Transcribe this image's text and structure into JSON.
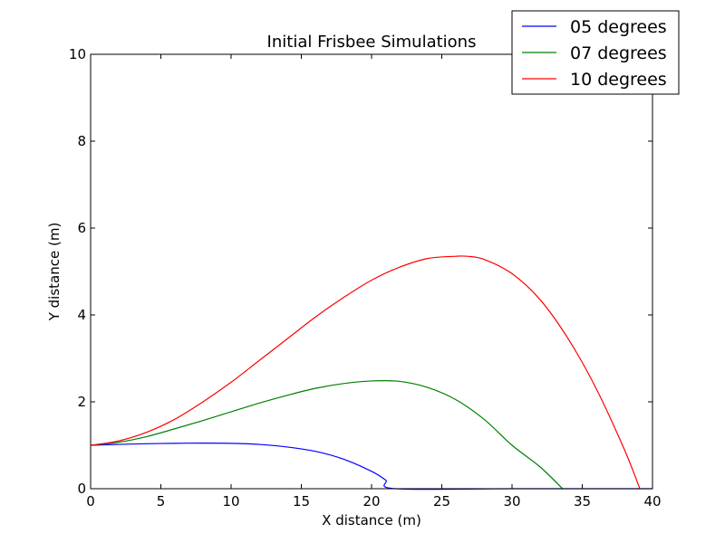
{
  "chart_data": {
    "type": "line",
    "title": "Initial Frisbee Simulations",
    "xlabel": "X distance (m)",
    "ylabel": "Y distance (m)",
    "xlim": [
      0,
      40
    ],
    "ylim": [
      0,
      10
    ],
    "xticks": [
      "0",
      "5",
      "10",
      "15",
      "20",
      "25",
      "30",
      "35",
      "40"
    ],
    "yticks": [
      "0",
      "2",
      "4",
      "6",
      "8",
      "10"
    ],
    "grid": false,
    "legend_position": "top-right",
    "series": [
      {
        "name": "05 degrees",
        "color": "#0000ff",
        "x": [
          0,
          2,
          4,
          6,
          8,
          10,
          12,
          14,
          16,
          18,
          20,
          21,
          21.7,
          30,
          40
        ],
        "y": [
          1.0,
          1.02,
          1.035,
          1.045,
          1.05,
          1.045,
          1.02,
          0.96,
          0.86,
          0.68,
          0.4,
          0.2,
          0.0,
          0.0,
          0.0
        ]
      },
      {
        "name": "07 degrees",
        "color": "#008000",
        "x": [
          0,
          2,
          4,
          6,
          8,
          10,
          12,
          14,
          16,
          18,
          20,
          22,
          24,
          26,
          28,
          30,
          32,
          33.6
        ],
        "y": [
          1.0,
          1.07,
          1.2,
          1.38,
          1.57,
          1.77,
          1.97,
          2.15,
          2.31,
          2.42,
          2.48,
          2.47,
          2.33,
          2.05,
          1.6,
          1.0,
          0.5,
          0.0
        ]
      },
      {
        "name": "10 degrees",
        "color": "#ff0000",
        "x": [
          0,
          2,
          4,
          6,
          8,
          10,
          12,
          14,
          16,
          18,
          20,
          22,
          24,
          26,
          26.8,
          28,
          30,
          32,
          34,
          36,
          38,
          39.1
        ],
        "y": [
          1.0,
          1.1,
          1.3,
          1.6,
          2.0,
          2.45,
          2.95,
          3.45,
          3.95,
          4.4,
          4.8,
          5.1,
          5.3,
          5.35,
          5.35,
          5.28,
          4.95,
          4.35,
          3.45,
          2.3,
          0.9,
          0.0
        ]
      }
    ]
  }
}
